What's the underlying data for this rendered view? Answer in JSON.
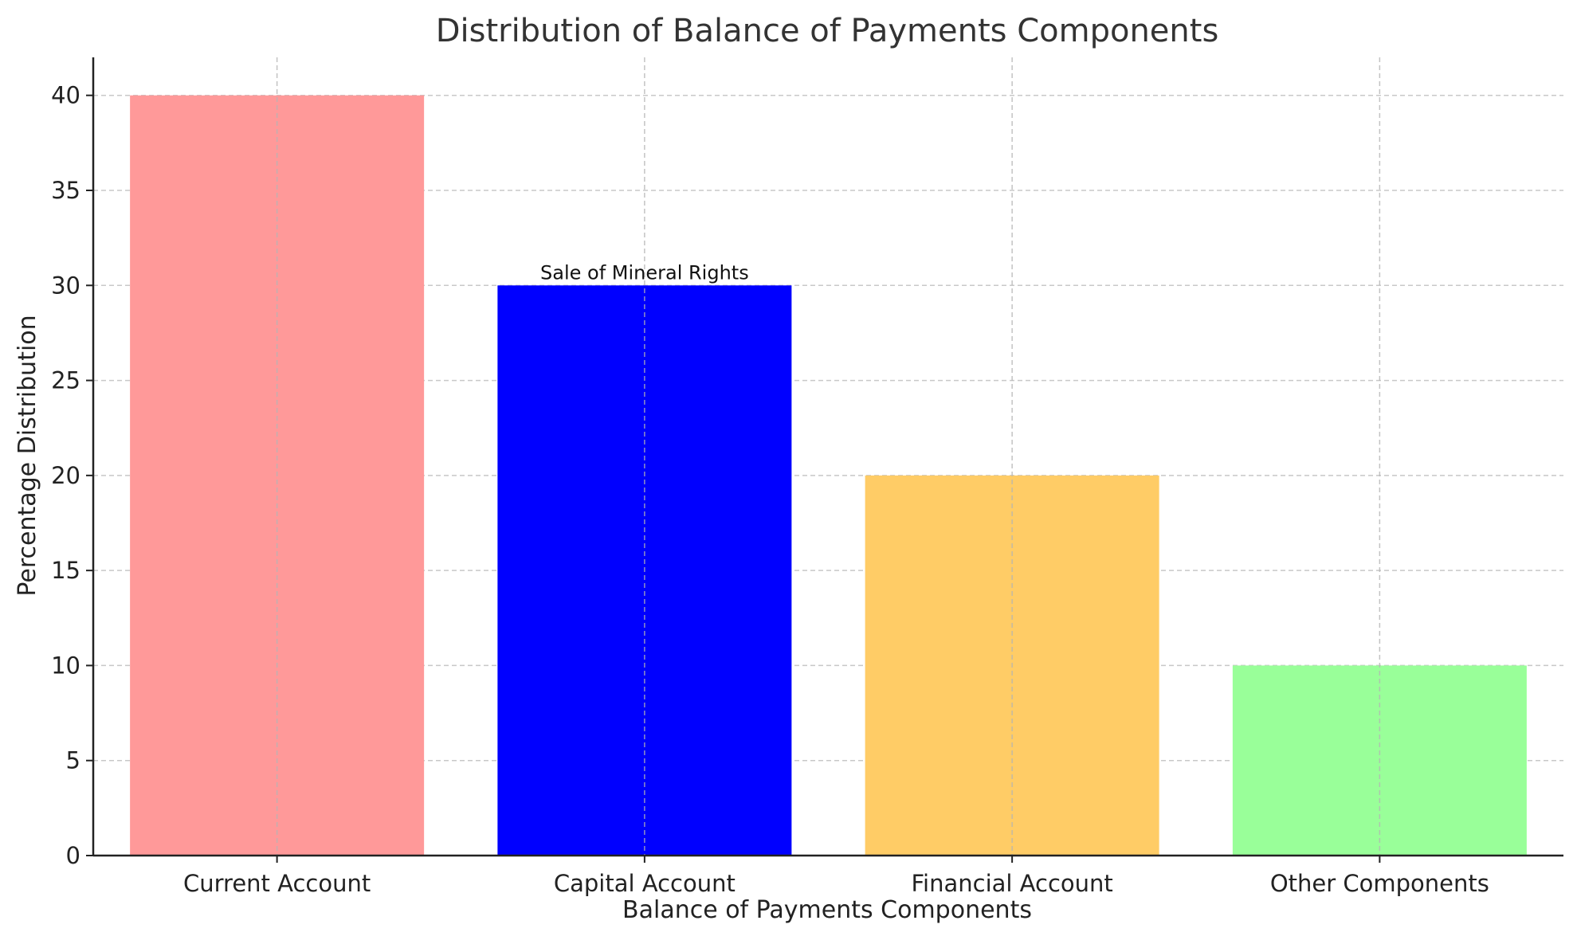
{
  "chart_data": {
    "type": "bar",
    "title": "Distribution of Balance of Payments Components",
    "xlabel": "Balance of Payments Components",
    "ylabel": "Percentage Distribution",
    "categories": [
      "Current Account",
      "Capital Account",
      "Financial Account",
      "Other Components"
    ],
    "values": [
      40,
      30,
      20,
      10
    ],
    "colors": [
      "#ff9999",
      "#0000ff",
      "#ffcc66",
      "#99ff99"
    ],
    "ylim": [
      0,
      42
    ],
    "yticks": [
      0,
      5,
      10,
      15,
      20,
      25,
      30,
      35,
      40
    ],
    "grid": true,
    "annotations": [
      {
        "category": "Capital Account",
        "text": "Sale of Mineral Rights"
      }
    ]
  }
}
